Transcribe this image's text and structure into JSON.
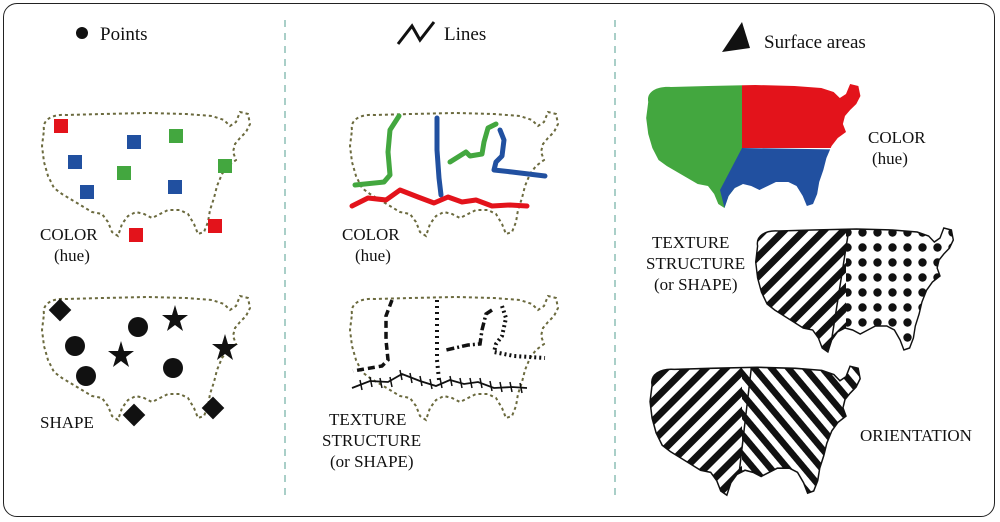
{
  "columns": [
    {
      "title": "Points",
      "icon": "dot-icon"
    },
    {
      "title": "Lines",
      "icon": "zigzag-line-icon"
    },
    {
      "title": "Surface areas",
      "icon": "triangle-area-icon"
    }
  ],
  "points": {
    "color_label": [
      "COLOR",
      "(hue)"
    ],
    "shape_label": [
      "SHAPE"
    ]
  },
  "lines": {
    "color_label": [
      "COLOR",
      "(hue)"
    ],
    "texture_label": [
      "TEXTURE",
      "STRUCTURE",
      "(or SHAPE)"
    ]
  },
  "areas": {
    "color_label": [
      "COLOR",
      "(hue)"
    ],
    "texture_label": [
      "TEXTURE",
      "STRUCTURE",
      "(or SHAPE)"
    ],
    "orientation_label": [
      "ORIENTATION"
    ]
  },
  "colors": {
    "red": "#e3131b",
    "green": "#43a73f",
    "blue": "#2150a0",
    "outline": "#6b6a3e",
    "divider": "#a9cfc8",
    "ink": "#111111"
  }
}
